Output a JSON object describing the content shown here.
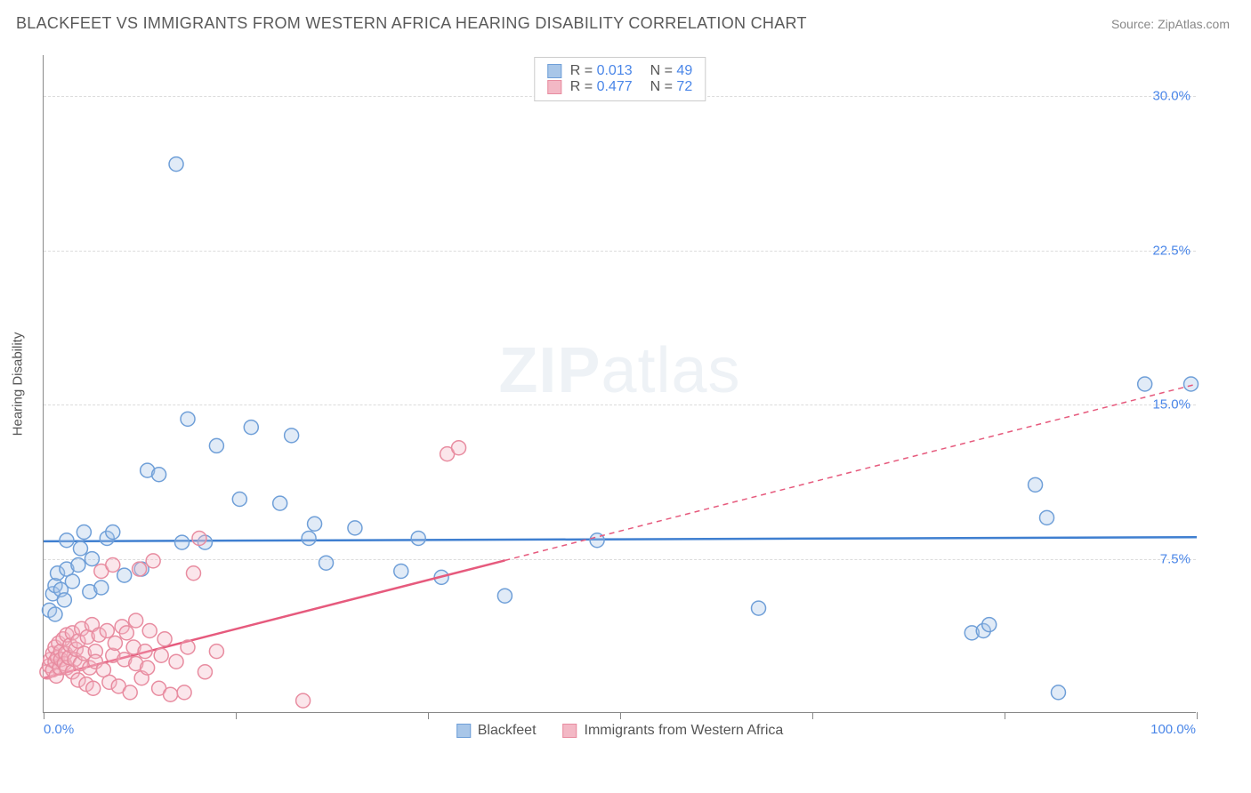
{
  "title": "BLACKFEET VS IMMIGRANTS FROM WESTERN AFRICA HEARING DISABILITY CORRELATION CHART",
  "source": "Source: ZipAtlas.com",
  "ylabel": "Hearing Disability",
  "watermark_zip": "ZIP",
  "watermark_atlas": "atlas",
  "chart": {
    "type": "scatter",
    "xlim": [
      0,
      100
    ],
    "ylim": [
      0,
      32
    ],
    "x_min_label": "0.0%",
    "x_max_label": "100.0%",
    "x_ticks": [
      0,
      16.67,
      33.33,
      50,
      66.67,
      83.33,
      100
    ],
    "y_gridlines": [
      7.5,
      15.0,
      22.5,
      30.0
    ],
    "y_tick_labels": [
      "7.5%",
      "15.0%",
      "22.5%",
      "30.0%"
    ],
    "grid_color": "#dcdcdc",
    "axis_color": "#888888",
    "background_color": "#ffffff",
    "marker_radius": 8,
    "marker_stroke_width": 1.5,
    "marker_fill_opacity": 0.35,
    "series": [
      {
        "name": "Blackfeet",
        "color_stroke": "#6f9fd8",
        "color_fill": "#a8c6e8",
        "R": "0.013",
        "N": "49",
        "trend": {
          "y_at_x0": 8.35,
          "y_at_x100": 8.55,
          "solid_until_x": 100,
          "color": "#3f7fd0",
          "width": 2.5,
          "dash": "6,5"
        },
        "points": [
          [
            0.5,
            5.0
          ],
          [
            0.8,
            5.8
          ],
          [
            1.0,
            6.2
          ],
          [
            1.0,
            4.8
          ],
          [
            1.2,
            6.8
          ],
          [
            1.5,
            6.0
          ],
          [
            1.8,
            5.5
          ],
          [
            2.0,
            7.0
          ],
          [
            2.0,
            8.4
          ],
          [
            2.5,
            6.4
          ],
          [
            3.0,
            7.2
          ],
          [
            3.2,
            8.0
          ],
          [
            3.5,
            8.8
          ],
          [
            4.0,
            5.9
          ],
          [
            4.2,
            7.5
          ],
          [
            5.0,
            6.1
          ],
          [
            5.5,
            8.5
          ],
          [
            6.0,
            8.8
          ],
          [
            7.0,
            6.7
          ],
          [
            8.5,
            7.0
          ],
          [
            9.0,
            11.8
          ],
          [
            10.0,
            11.6
          ],
          [
            11.5,
            26.7
          ],
          [
            12.0,
            8.3
          ],
          [
            12.5,
            14.3
          ],
          [
            14.0,
            8.3
          ],
          [
            15.0,
            13.0
          ],
          [
            17.0,
            10.4
          ],
          [
            18.0,
            13.9
          ],
          [
            20.5,
            10.2
          ],
          [
            21.5,
            13.5
          ],
          [
            23.0,
            8.5
          ],
          [
            23.5,
            9.2
          ],
          [
            24.5,
            7.3
          ],
          [
            27.0,
            9.0
          ],
          [
            31.0,
            6.9
          ],
          [
            32.5,
            8.5
          ],
          [
            34.5,
            6.6
          ],
          [
            40.0,
            5.7
          ],
          [
            48.0,
            8.4
          ],
          [
            62.0,
            5.1
          ],
          [
            80.5,
            3.9
          ],
          [
            81.5,
            4.0
          ],
          [
            82.0,
            4.3
          ],
          [
            86.0,
            11.1
          ],
          [
            87.0,
            9.5
          ],
          [
            88.0,
            1.0
          ],
          [
            95.5,
            16.0
          ],
          [
            99.5,
            16.0
          ]
        ]
      },
      {
        "name": "Immigrants from Western Africa",
        "color_stroke": "#e88ca0",
        "color_fill": "#f3b8c5",
        "R": "0.477",
        "N": "72",
        "trend": {
          "y_at_x0": 1.7,
          "y_at_x100": 16.0,
          "solid_until_x": 40,
          "color": "#e65a7d",
          "width": 2.5,
          "dash": "6,5"
        },
        "points": [
          [
            0.3,
            2.0
          ],
          [
            0.5,
            2.3
          ],
          [
            0.6,
            2.6
          ],
          [
            0.8,
            2.1
          ],
          [
            0.8,
            2.9
          ],
          [
            1.0,
            2.5
          ],
          [
            1.0,
            3.2
          ],
          [
            1.1,
            1.8
          ],
          [
            1.2,
            2.7
          ],
          [
            1.3,
            3.4
          ],
          [
            1.4,
            2.2
          ],
          [
            1.5,
            3.0
          ],
          [
            1.5,
            2.6
          ],
          [
            1.7,
            3.6
          ],
          [
            1.8,
            2.4
          ],
          [
            1.9,
            2.9
          ],
          [
            2.0,
            2.2
          ],
          [
            2.0,
            3.8
          ],
          [
            2.2,
            2.7
          ],
          [
            2.3,
            3.3
          ],
          [
            2.5,
            2.0
          ],
          [
            2.5,
            3.9
          ],
          [
            2.7,
            2.6
          ],
          [
            2.8,
            3.1
          ],
          [
            3.0,
            1.6
          ],
          [
            3.0,
            3.5
          ],
          [
            3.2,
            2.4
          ],
          [
            3.3,
            4.1
          ],
          [
            3.5,
            2.9
          ],
          [
            3.7,
            1.4
          ],
          [
            3.8,
            3.7
          ],
          [
            4.0,
            2.2
          ],
          [
            4.2,
            4.3
          ],
          [
            4.3,
            1.2
          ],
          [
            4.5,
            3.0
          ],
          [
            4.5,
            2.5
          ],
          [
            4.8,
            3.8
          ],
          [
            5.0,
            6.9
          ],
          [
            5.2,
            2.1
          ],
          [
            5.5,
            4.0
          ],
          [
            5.7,
            1.5
          ],
          [
            6.0,
            2.8
          ],
          [
            6.0,
            7.2
          ],
          [
            6.2,
            3.4
          ],
          [
            6.5,
            1.3
          ],
          [
            6.8,
            4.2
          ],
          [
            7.0,
            2.6
          ],
          [
            7.2,
            3.9
          ],
          [
            7.5,
            1.0
          ],
          [
            7.8,
            3.2
          ],
          [
            8.0,
            2.4
          ],
          [
            8.0,
            4.5
          ],
          [
            8.3,
            7.0
          ],
          [
            8.5,
            1.7
          ],
          [
            8.8,
            3.0
          ],
          [
            9.0,
            2.2
          ],
          [
            9.2,
            4.0
          ],
          [
            9.5,
            7.4
          ],
          [
            10.0,
            1.2
          ],
          [
            10.2,
            2.8
          ],
          [
            10.5,
            3.6
          ],
          [
            11.0,
            0.9
          ],
          [
            11.5,
            2.5
          ],
          [
            12.2,
            1.0
          ],
          [
            12.5,
            3.2
          ],
          [
            13.0,
            6.8
          ],
          [
            13.5,
            8.5
          ],
          [
            14.0,
            2.0
          ],
          [
            15.0,
            3.0
          ],
          [
            22.5,
            0.6
          ],
          [
            35.0,
            12.6
          ],
          [
            36.0,
            12.9
          ]
        ]
      }
    ]
  },
  "bottom_legend": [
    {
      "label": "Blackfeet",
      "fill": "#a8c6e8",
      "stroke": "#6f9fd8"
    },
    {
      "label": "Immigrants from Western Africa",
      "fill": "#f3b8c5",
      "stroke": "#e88ca0"
    }
  ],
  "top_legend_labels": {
    "R": "R =",
    "N": "N ="
  }
}
